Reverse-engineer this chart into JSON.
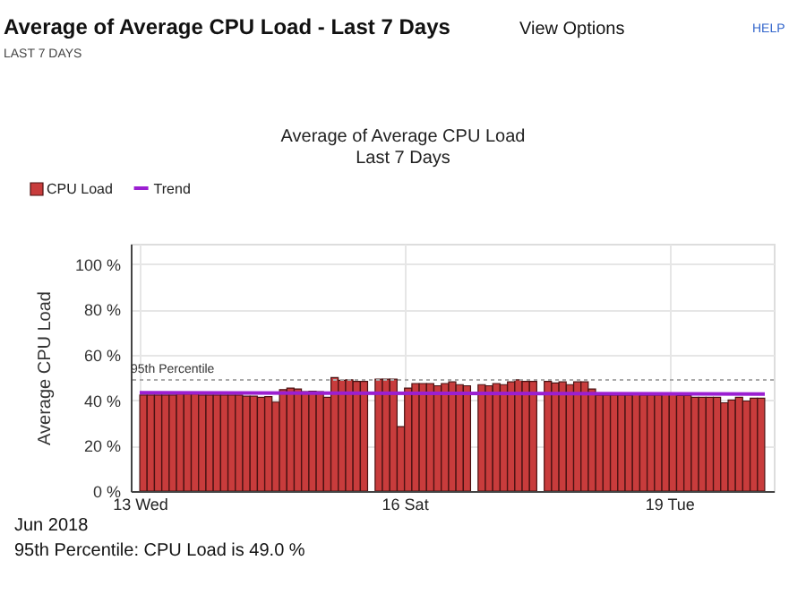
{
  "chart_data": {
    "type": "bar",
    "title": "Average of Average CPU Load - Last 7 Days",
    "subtitle": "LAST 7 DAYS",
    "ylabel": "Average CPU Load",
    "annotations": [
      "View Options",
      "HELP",
      "Average of Average CPU Load",
      "Last 7 Days",
      "Jun 2018",
      "95th Percentile: CPU Load is 49.0  %"
    ],
    "xlim": [
      "2018-06-13T00:00",
      "2018-06-20T02:00"
    ],
    "xticks": [
      {
        "value": "2018-06-13",
        "label": "13 Wed"
      },
      {
        "value": "2018-06-16",
        "label": "16 Sat"
      },
      {
        "value": "2018-06-19",
        "label": "19 Tue"
      }
    ],
    "ylim": [
      0,
      109
    ],
    "yticks": [
      {
        "value": 0,
        "label": "0 %"
      },
      {
        "value": 20,
        "label": "20 %"
      },
      {
        "value": 40,
        "label": "40 %"
      },
      {
        "value": 60,
        "label": "60 %"
      },
      {
        "value": 80,
        "label": "80 %"
      },
      {
        "value": 100,
        "label": "100 %"
      }
    ],
    "grid": true,
    "legend": "top left",
    "ref_lines": [
      {
        "axis": "y",
        "value": 49.0,
        "label": "95th Percentile",
        "color": "#aaaaaa",
        "line_style": "dotted"
      }
    ],
    "series": [
      {
        "name": "CPU Load",
        "color": "#c83c3c",
        "x": [
          "2018-06-13T01:00",
          "2018-06-13T03:00",
          "2018-06-13T05:00",
          "2018-06-13T07:00",
          "2018-06-13T09:00",
          "2018-06-13T11:00",
          "2018-06-13T13:00",
          "2018-06-13T15:00",
          "2018-06-13T17:00",
          "2018-06-13T19:00",
          "2018-06-13T21:00",
          "2018-06-13T23:00",
          "2018-06-14T01:00",
          "2018-06-14T03:00",
          "2018-06-14T05:00",
          "2018-06-14T07:00",
          "2018-06-14T09:00",
          "2018-06-14T11:00",
          "2018-06-14T13:00",
          "2018-06-14T15:00",
          "2018-06-14T17:00",
          "2018-06-14T19:00",
          "2018-06-14T21:00",
          "2018-06-14T23:00",
          "2018-06-15T01:00",
          "2018-06-15T03:00",
          "2018-06-15T05:00",
          "2018-06-15T07:00",
          "2018-06-15T09:00",
          "2018-06-15T11:00",
          "2018-06-15T13:00",
          "2018-06-15T15:00",
          "2018-06-15T17:00",
          "2018-06-15T19:00",
          "2018-06-15T21:00",
          "2018-06-15T23:00",
          "2018-06-16T01:00",
          "2018-06-16T03:00",
          "2018-06-16T05:00",
          "2018-06-16T07:00",
          "2018-06-16T09:00",
          "2018-06-16T11:00",
          "2018-06-16T13:00",
          "2018-06-16T15:00",
          "2018-06-16T17:00",
          "2018-06-16T19:00",
          "2018-06-16T21:00",
          "2018-06-16T23:00",
          "2018-06-17T01:00",
          "2018-06-17T03:00",
          "2018-06-17T05:00",
          "2018-06-17T07:00",
          "2018-06-17T09:00",
          "2018-06-17T11:00",
          "2018-06-17T13:00",
          "2018-06-17T15:00",
          "2018-06-17T17:00",
          "2018-06-17T19:00",
          "2018-06-17T21:00",
          "2018-06-17T23:00",
          "2018-06-18T01:00",
          "2018-06-18T03:00",
          "2018-06-18T05:00",
          "2018-06-18T07:00",
          "2018-06-18T09:00",
          "2018-06-18T11:00",
          "2018-06-18T13:00",
          "2018-06-18T15:00",
          "2018-06-18T17:00",
          "2018-06-18T19:00",
          "2018-06-18T21:00",
          "2018-06-18T23:00",
          "2018-06-19T01:00",
          "2018-06-19T03:00",
          "2018-06-19T05:00",
          "2018-06-19T07:00",
          "2018-06-19T09:00",
          "2018-06-19T11:00",
          "2018-06-19T13:00",
          "2018-06-19T15:00",
          "2018-06-19T17:00",
          "2018-06-19T19:00",
          "2018-06-19T21:00",
          "2018-06-19T23:00",
          "2018-06-20T01:00"
        ],
        "values": [
          42.3,
          42.3,
          42.3,
          42.3,
          42.3,
          42.8,
          42.8,
          42.8,
          42.3,
          42.3,
          42.3,
          42.3,
          42.3,
          42.3,
          41.8,
          41.8,
          41.3,
          41.6,
          39.2,
          44.7,
          45.4,
          45.0,
          43.8,
          44.0,
          43.8,
          41.3,
          50.0,
          48.8,
          49.0,
          48.3,
          48.3,
          null,
          49.3,
          49.3,
          49.3,
          28.4,
          45.4,
          47.4,
          47.4,
          47.4,
          46.4,
          47.4,
          48.1,
          46.9,
          46.4,
          null,
          46.9,
          46.4,
          47.4,
          46.9,
          48.1,
          49.0,
          48.3,
          48.3,
          null,
          48.3,
          47.6,
          48.1,
          46.9,
          48.1,
          48.1,
          45.0,
          42.3,
          42.3,
          42.3,
          42.3,
          42.3,
          42.8,
          42.3,
          42.3,
          42.3,
          43.0,
          43.0,
          42.1,
          42.1,
          41.3,
          41.3,
          41.3,
          41.3,
          38.9,
          40.1,
          41.3,
          39.7,
          40.9,
          40.9
        ]
      },
      {
        "name": "Trend",
        "type": "line",
        "color": "#9b1fd1",
        "x": [
          "2018-06-13T00:00",
          "2018-06-20T02:00"
        ],
        "values": [
          43.3,
          42.8
        ]
      }
    ]
  }
}
